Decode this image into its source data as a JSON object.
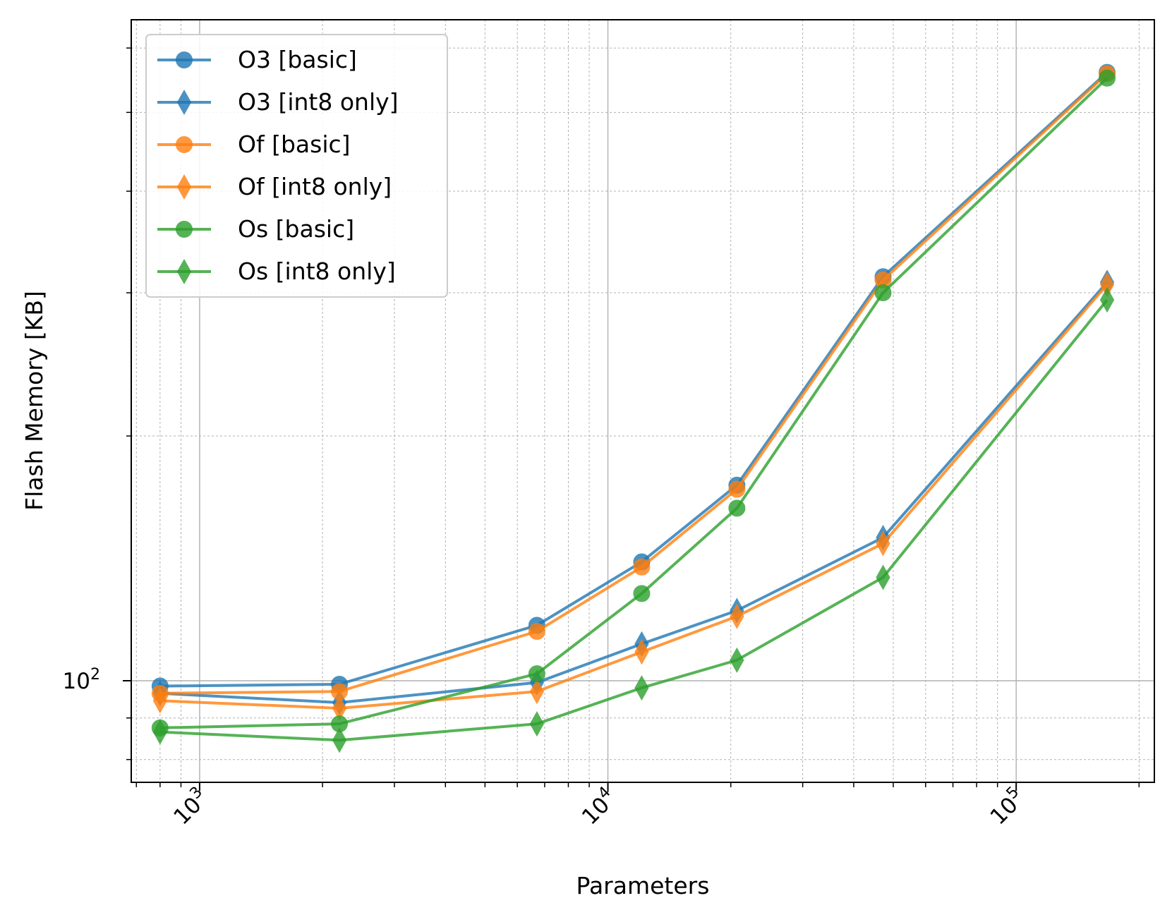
{
  "chart_data": {
    "type": "line",
    "title": "",
    "xlabel": "Parameters",
    "ylabel": "Flash Memory [KB]",
    "xscale": "log",
    "yscale": "log",
    "xlim": [
      680,
      218000
    ],
    "ylim": [
      75,
      650
    ],
    "x_ticks": [
      1000,
      10000,
      100000
    ],
    "x_tick_labels": [
      {
        "base": "10",
        "exp": "3"
      },
      {
        "base": "10",
        "exp": "4"
      },
      {
        "base": "10",
        "exp": "5"
      }
    ],
    "y_ticks": [
      100
    ],
    "y_tick_labels": [
      {
        "base": "10",
        "exp": "2"
      }
    ],
    "grid": "major and minor",
    "legend_position": "upper-left",
    "x": [
      800,
      2200,
      6700,
      12100,
      20700,
      47200,
      167000
    ],
    "series": [
      {
        "name": "O3 [basic]",
        "color": "#1f77b4",
        "marker": "circle",
        "values": [
          98.5,
          99,
          117,
          140,
          174,
          314,
          560
        ]
      },
      {
        "name": "O3 [int8 only]",
        "color": "#1f77b4",
        "marker": "diamond",
        "values": [
          96.5,
          94,
          99.5,
          111,
          122,
          150,
          309
        ]
      },
      {
        "name": "Of [basic]",
        "color": "#ff7f0e",
        "marker": "circle",
        "values": [
          96.5,
          97,
          115,
          138,
          172,
          311,
          558
        ]
      },
      {
        "name": "Of [int8 only]",
        "color": "#ff7f0e",
        "marker": "diamond",
        "values": [
          94.5,
          92.5,
          97,
          108.5,
          120,
          147.5,
          307
        ]
      },
      {
        "name": "Os [basic]",
        "color": "#2ca02c",
        "marker": "circle",
        "values": [
          87.5,
          88.5,
          102,
          128,
          163,
          300,
          551
        ]
      },
      {
        "name": "Os [int8 only]",
        "color": "#2ca02c",
        "marker": "diamond",
        "values": [
          86.5,
          84.5,
          88.5,
          98,
          106,
          134,
          294
        ]
      }
    ]
  }
}
